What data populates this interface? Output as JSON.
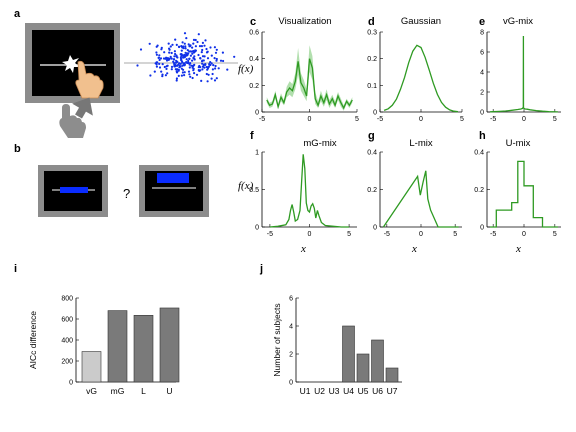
{
  "panel_labels": {
    "a": "a",
    "b": "b",
    "c": "c",
    "d": "d",
    "e": "e",
    "f": "f",
    "g": "g",
    "h": "h",
    "i": "i",
    "j": "j"
  },
  "colors": {
    "curve": "#2e9a22",
    "band": "#9fd79a",
    "dots": "#1030e8",
    "bar_light": "#cbcbcb",
    "bar_dark": "#7a7a7a",
    "screen": "#000000",
    "frame": "#8c8c8c",
    "target": "#0a2cff"
  },
  "icons": [
    "touchscreen-icon",
    "hand-pointer-icon",
    "up-arrow-icon"
  ],
  "question_mark": "?",
  "axis_labels": {
    "fx": "f(x)",
    "x": "x"
  },
  "chart_data": [
    {
      "type": "line",
      "title": "Visualization",
      "xlim": [
        -5,
        5
      ],
      "ylim": [
        0,
        0.6
      ],
      "x_ticks": [
        -5,
        0,
        5
      ],
      "y_ticks": [
        0,
        0.2,
        0.4,
        0.6
      ],
      "x": [
        -4.5,
        -4.2,
        -3.9,
        -3.6,
        -3.3,
        -3.0,
        -2.7,
        -2.4,
        -2.1,
        -1.8,
        -1.5,
        -1.2,
        -0.9,
        -0.6,
        -0.3,
        0.0,
        0.3,
        0.6,
        0.9,
        1.2,
        1.5,
        1.8,
        2.1,
        2.4,
        2.7,
        3.0,
        3.3,
        3.6,
        3.9,
        4.2,
        4.5
      ],
      "y": [
        0.09,
        0.05,
        0.06,
        0.13,
        0.04,
        0.11,
        0.07,
        0.15,
        0.18,
        0.16,
        0.23,
        0.38,
        0.22,
        0.18,
        0.12,
        0.4,
        0.33,
        0.1,
        0.05,
        0.12,
        0.07,
        0.13,
        0.06,
        0.1,
        0.05,
        0.12,
        0.07,
        0.03,
        0.08,
        0.05,
        0.09
      ],
      "band_upper": [
        0.11,
        0.07,
        0.08,
        0.16,
        0.06,
        0.14,
        0.09,
        0.19,
        0.23,
        0.21,
        0.29,
        0.48,
        0.29,
        0.24,
        0.17,
        0.5,
        0.42,
        0.15,
        0.08,
        0.16,
        0.1,
        0.17,
        0.09,
        0.13,
        0.08,
        0.15,
        0.1,
        0.05,
        0.1,
        0.07,
        0.11
      ],
      "band_lower": [
        0.07,
        0.03,
        0.04,
        0.1,
        0.02,
        0.08,
        0.05,
        0.11,
        0.13,
        0.11,
        0.17,
        0.28,
        0.16,
        0.12,
        0.08,
        0.3,
        0.24,
        0.06,
        0.03,
        0.08,
        0.04,
        0.09,
        0.03,
        0.07,
        0.03,
        0.09,
        0.04,
        0.01,
        0.06,
        0.03,
        0.07
      ]
    },
    {
      "type": "line",
      "title": "Gaussian",
      "xlim": [
        -5,
        5
      ],
      "ylim": [
        0,
        0.3
      ],
      "x_ticks": [
        -5,
        0,
        5
      ],
      "y_ticks": [
        0,
        0.1,
        0.2,
        0.3
      ],
      "x": [
        -4.5,
        -4.0,
        -3.5,
        -3.0,
        -2.5,
        -2.0,
        -1.5,
        -1.0,
        -0.5,
        0.0,
        0.5,
        1.0,
        1.5,
        2.0,
        2.5,
        3.0,
        3.5,
        4.0,
        4.5
      ],
      "y": [
        0.006,
        0.012,
        0.025,
        0.048,
        0.085,
        0.13,
        0.185,
        0.228,
        0.25,
        0.242,
        0.205,
        0.158,
        0.108,
        0.066,
        0.036,
        0.018,
        0.008,
        0.003,
        0.001
      ]
    },
    {
      "type": "line",
      "title": "vG-mix",
      "xlim": [
        -6,
        6
      ],
      "ylim": [
        0,
        8
      ],
      "x_ticks": [
        -5,
        0,
        5
      ],
      "y_ticks": [
        0,
        2,
        4,
        6,
        8
      ],
      "x": [
        -5.5,
        -4,
        -3,
        -2,
        -1,
        -0.5,
        -0.25,
        -0.12,
        -0.1,
        -0.08,
        -0.05,
        0,
        0.2,
        0.5,
        1,
        2,
        3,
        4,
        5.5
      ],
      "y": [
        0.02,
        0.06,
        0.1,
        0.17,
        0.25,
        0.3,
        0.35,
        0.5,
        7.6,
        0.5,
        0.38,
        0.35,
        0.3,
        0.28,
        0.22,
        0.14,
        0.08,
        0.04,
        0.01
      ]
    },
    {
      "type": "line",
      "title": "mG-mix",
      "xlim": [
        -6,
        6
      ],
      "ylim": [
        0,
        1
      ],
      "x_ticks": [
        -5,
        0,
        5
      ],
      "y_ticks": [
        0,
        0.5,
        1
      ],
      "x": [
        -5,
        -4,
        -3,
        -2.6,
        -2.4,
        -2.2,
        -2.0,
        -1.8,
        -1.5,
        -1.2,
        -1.0,
        -0.8,
        -0.6,
        -0.4,
        -0.2,
        0.0,
        0.2,
        0.4,
        0.6,
        0.8,
        1.0,
        1.2,
        1.5,
        2,
        3,
        4,
        5
      ],
      "y": [
        0,
        0.01,
        0.03,
        0.1,
        0.22,
        0.3,
        0.2,
        0.08,
        0.1,
        0.22,
        0.6,
        0.97,
        0.78,
        0.32,
        0.22,
        0.2,
        0.28,
        0.31,
        0.25,
        0.12,
        0.22,
        0.15,
        0.06,
        0.02,
        0.01,
        0,
        0
      ]
    },
    {
      "type": "line",
      "title": "L-mix",
      "xlim": [
        -6,
        6
      ],
      "ylim": [
        0,
        0.4
      ],
      "x_ticks": [
        -5,
        0,
        5
      ],
      "y_ticks": [
        0,
        0.2,
        0.4
      ],
      "x": [
        -5.5,
        -0.5,
        -0.1,
        0.3,
        0.7,
        1.0,
        1.4,
        2.5,
        5.5
      ],
      "y": [
        0,
        0.27,
        0.17,
        0.24,
        0.3,
        0.15,
        0.09,
        0,
        0
      ]
    },
    {
      "type": "line",
      "title": "U-mix",
      "xlim": [
        -6,
        6
      ],
      "ylim": [
        0,
        0.4
      ],
      "x_ticks": [
        -5,
        0,
        5
      ],
      "y_ticks": [
        0,
        0.2,
        0.4
      ],
      "x": [
        -5.5,
        -4.5,
        -4.5,
        -2,
        -2,
        -1,
        -1,
        0,
        0,
        1.5,
        1.5,
        3,
        3,
        5.5
      ],
      "y": [
        0,
        0,
        0.09,
        0.09,
        0.13,
        0.13,
        0.35,
        0.35,
        0.22,
        0.22,
        0.05,
        0.05,
        0,
        0
      ]
    },
    {
      "type": "bar",
      "title": "",
      "ylabel": "AICc difference",
      "ylim": [
        0,
        800
      ],
      "y_ticks": [
        0,
        200,
        400,
        600,
        800
      ],
      "categories": [
        "vG",
        "mG",
        "L",
        "U"
      ],
      "values": [
        290,
        680,
        635,
        705
      ]
    },
    {
      "type": "bar",
      "title": "",
      "ylabel": "Number of subjects",
      "ylim": [
        0,
        6
      ],
      "y_ticks": [
        0,
        2,
        4,
        6
      ],
      "categories": [
        "U1",
        "U2",
        "U3",
        "U4",
        "U5",
        "U6",
        "U7"
      ],
      "values": [
        0,
        0,
        0,
        4,
        2,
        3,
        1
      ]
    }
  ]
}
